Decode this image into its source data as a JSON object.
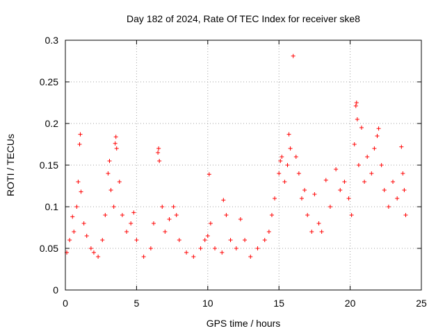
{
  "chart_data": {
    "type": "scatter",
    "title": "Day 182 of 2024, Rate Of TEC Index for receiver ske8",
    "xlabel": "GPS time / hours",
    "ylabel": "ROTI / TECUs",
    "xlim": [
      0,
      25
    ],
    "ylim": [
      0,
      0.3
    ],
    "x_ticks": [
      "0",
      "5",
      "10",
      "15",
      "20",
      "25"
    ],
    "y_ticks": [
      "0",
      "0.05",
      "0.1",
      "0.15",
      "0.2",
      "0.25",
      "0.3"
    ],
    "grid": true,
    "marker": "+",
    "series_color": "#ff0000",
    "series": [
      {
        "name": "ROTI",
        "points": [
          [
            0.1,
            0.045
          ],
          [
            0.3,
            0.06
          ],
          [
            0.5,
            0.088
          ],
          [
            0.6,
            0.07
          ],
          [
            0.8,
            0.1
          ],
          [
            0.9,
            0.13
          ],
          [
            1.0,
            0.175
          ],
          [
            1.05,
            0.187
          ],
          [
            1.1,
            0.118
          ],
          [
            1.3,
            0.08
          ],
          [
            1.5,
            0.065
          ],
          [
            1.8,
            0.05
          ],
          [
            2.0,
            0.045
          ],
          [
            2.3,
            0.04
          ],
          [
            2.6,
            0.06
          ],
          [
            2.8,
            0.09
          ],
          [
            3.0,
            0.14
          ],
          [
            3.1,
            0.155
          ],
          [
            3.2,
            0.12
          ],
          [
            3.4,
            0.1
          ],
          [
            3.5,
            0.176
          ],
          [
            3.55,
            0.184
          ],
          [
            3.6,
            0.17
          ],
          [
            3.8,
            0.13
          ],
          [
            4.0,
            0.09
          ],
          [
            4.3,
            0.07
          ],
          [
            4.6,
            0.08
          ],
          [
            4.8,
            0.093
          ],
          [
            5.0,
            0.06
          ],
          [
            5.5,
            0.04
          ],
          [
            6.0,
            0.05
          ],
          [
            6.2,
            0.08
          ],
          [
            6.5,
            0.165
          ],
          [
            6.55,
            0.17
          ],
          [
            6.6,
            0.155
          ],
          [
            6.8,
            0.1
          ],
          [
            7.0,
            0.07
          ],
          [
            7.3,
            0.085
          ],
          [
            7.6,
            0.1
          ],
          [
            7.8,
            0.09
          ],
          [
            8.0,
            0.06
          ],
          [
            8.5,
            0.045
          ],
          [
            9.0,
            0.04
          ],
          [
            9.5,
            0.05
          ],
          [
            9.8,
            0.06
          ],
          [
            10.0,
            0.065
          ],
          [
            10.1,
            0.139
          ],
          [
            10.2,
            0.08
          ],
          [
            10.5,
            0.05
          ],
          [
            11.0,
            0.045
          ],
          [
            11.1,
            0.108
          ],
          [
            11.3,
            0.09
          ],
          [
            11.6,
            0.06
          ],
          [
            12.0,
            0.05
          ],
          [
            12.3,
            0.085
          ],
          [
            12.6,
            0.06
          ],
          [
            13.0,
            0.04
          ],
          [
            13.5,
            0.05
          ],
          [
            14.0,
            0.06
          ],
          [
            14.3,
            0.07
          ],
          [
            14.5,
            0.09
          ],
          [
            14.7,
            0.11
          ],
          [
            15.0,
            0.14
          ],
          [
            15.1,
            0.155
          ],
          [
            15.2,
            0.16
          ],
          [
            15.4,
            0.13
          ],
          [
            15.6,
            0.15
          ],
          [
            15.7,
            0.187
          ],
          [
            15.8,
            0.17
          ],
          [
            16.0,
            0.281
          ],
          [
            16.2,
            0.16
          ],
          [
            16.4,
            0.14
          ],
          [
            16.6,
            0.11
          ],
          [
            16.8,
            0.12
          ],
          [
            17.0,
            0.09
          ],
          [
            17.3,
            0.07
          ],
          [
            17.5,
            0.115
          ],
          [
            17.8,
            0.08
          ],
          [
            18.0,
            0.07
          ],
          [
            18.3,
            0.132
          ],
          [
            18.6,
            0.1
          ],
          [
            19.0,
            0.145
          ],
          [
            19.3,
            0.12
          ],
          [
            19.6,
            0.13
          ],
          [
            19.9,
            0.11
          ],
          [
            20.1,
            0.09
          ],
          [
            20.3,
            0.175
          ],
          [
            20.4,
            0.221
          ],
          [
            20.45,
            0.225
          ],
          [
            20.5,
            0.205
          ],
          [
            20.6,
            0.15
          ],
          [
            20.8,
            0.195
          ],
          [
            21.0,
            0.13
          ],
          [
            21.2,
            0.16
          ],
          [
            21.5,
            0.14
          ],
          [
            21.7,
            0.17
          ],
          [
            21.9,
            0.185
          ],
          [
            22.0,
            0.194
          ],
          [
            22.2,
            0.15
          ],
          [
            22.4,
            0.12
          ],
          [
            22.7,
            0.1
          ],
          [
            23.0,
            0.13
          ],
          [
            23.3,
            0.11
          ],
          [
            23.6,
            0.172
          ],
          [
            23.7,
            0.14
          ],
          [
            23.8,
            0.12
          ],
          [
            23.9,
            0.09
          ]
        ]
      }
    ]
  }
}
